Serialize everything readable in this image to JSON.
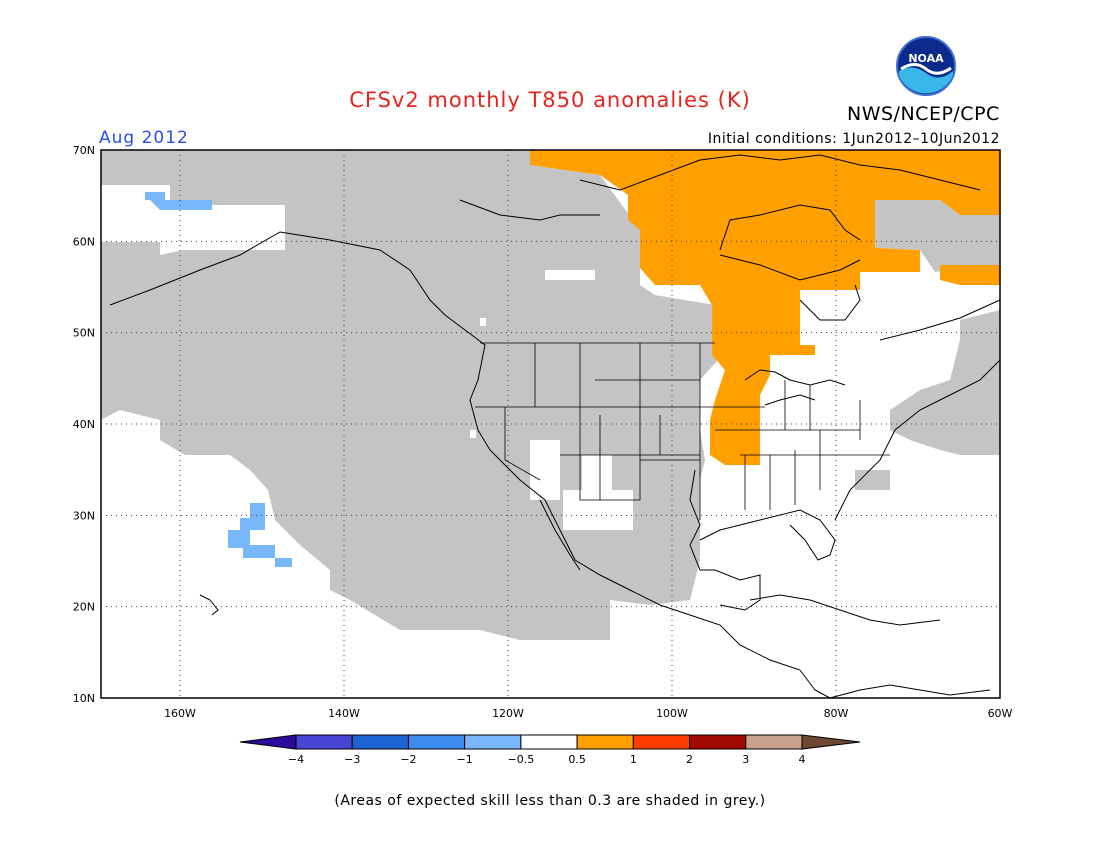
{
  "title": "CFSv2 monthly T850 anomalies (K)",
  "valid_month": "Aug 2012",
  "agency": "NWS/NCEP/CPC",
  "initial_conditions": "Initial conditions: 1Jun2012–10Jun2012",
  "logo_text": "NOAA",
  "footnote": "(Areas of expected skill less than 0.3 are shaded in grey.)",
  "map": {
    "lat_labels": [
      "70N",
      "60N",
      "50N",
      "40N",
      "30N",
      "20N",
      "10N"
    ],
    "lon_labels": [
      "160W",
      "140W",
      "120W",
      "100W",
      "80W",
      "60W"
    ],
    "grey_color": "#c4c4c4",
    "anomaly_colors": {
      "positive_1": "#ffa000",
      "negative_1": "#78b8fa"
    }
  },
  "colorbar": {
    "ticks": [
      "−4",
      "−3",
      "−2",
      "−1",
      "−0.5",
      "0.5",
      "1",
      "2",
      "3",
      "4"
    ],
    "colors": [
      "#2c0a9e",
      "#4646d2",
      "#1e64d2",
      "#3c8cf0",
      "#78b8fa",
      "#ffffff",
      "#ffa000",
      "#ff3c00",
      "#a00a00",
      "#c8a08c",
      "#6e4632"
    ]
  }
}
